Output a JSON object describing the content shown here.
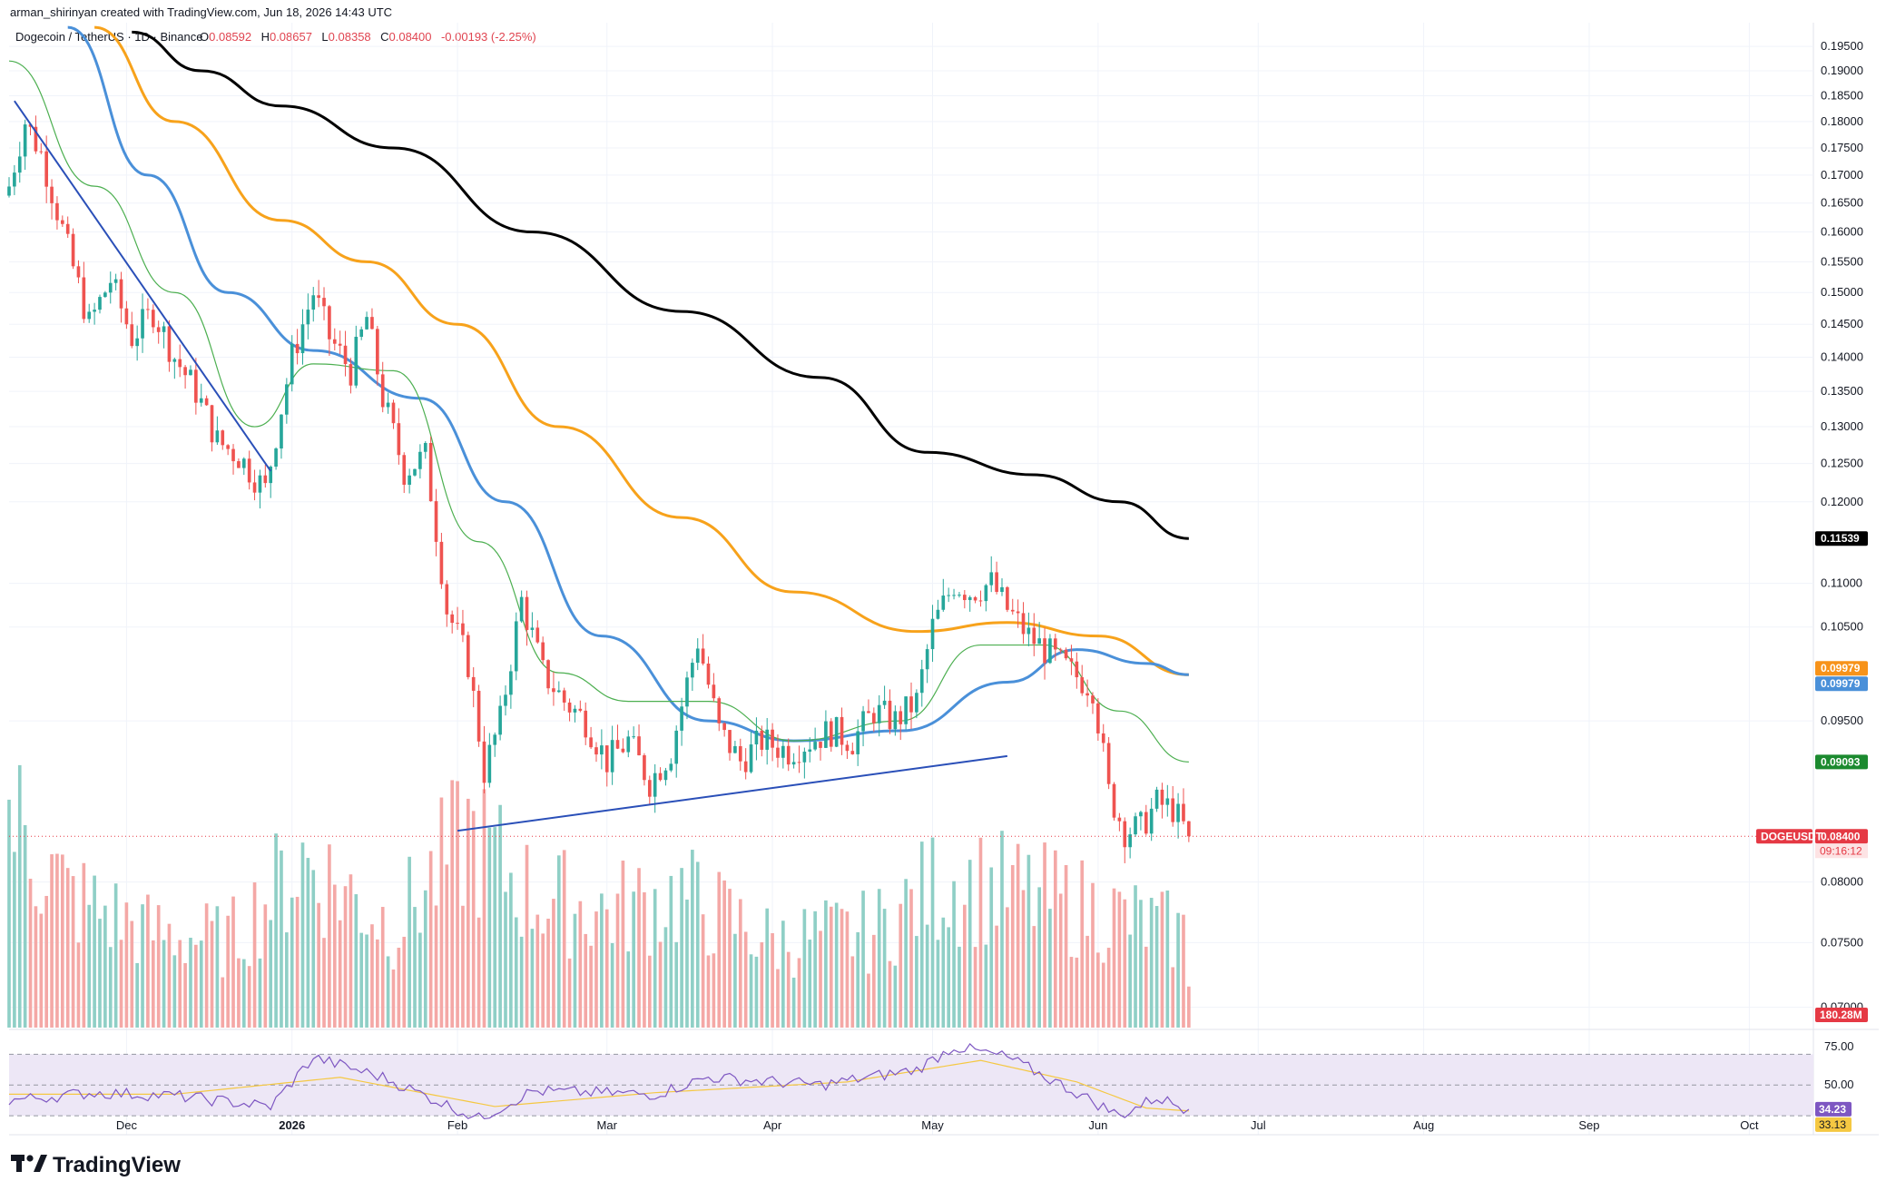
{
  "header": {
    "credit": "arman_shirinyan created with TradingView.com, Jun 18, 2026 14:43 UTC",
    "symbol_line": "Dogecoin / TetherUS · 1D · Binance",
    "ohlc": {
      "o_label": "O",
      "o": "0.08592",
      "h_label": "H",
      "h": "0.08657",
      "l_label": "L",
      "l": "0.08358",
      "c_label": "C",
      "c": "0.08400",
      "change": "-0.00193 (-2.25%)"
    }
  },
  "colors": {
    "up": "#26a69a",
    "down": "#ef5350",
    "vol_up": "#8fcfc6",
    "vol_down": "#f4a8a6",
    "ma_black": "#000000",
    "ma_orange": "#f7a21b",
    "ma_blue": "#4a90d9",
    "ma_green": "#4caf50",
    "trendline": "#2a4fb8",
    "rsi_line": "#7e57c2",
    "rsi_ma": "#f5c842",
    "rsi_band": "#ede7f6",
    "tag_black": "#000000",
    "tag_orange": "#f7931a",
    "tag_blue": "#4a90d9",
    "tag_green": "#1b8a2f",
    "tag_red": "#e53944"
  },
  "chart_data": {
    "type": "candlestick",
    "x_axis": {
      "labels": [
        "Dec",
        "2026",
        "Feb",
        "Mar",
        "Apr",
        "May",
        "Jun",
        "Jul",
        "Aug",
        "Sep",
        "Oct"
      ],
      "range": [
        "2025-11-09",
        "2026-10-13"
      ]
    },
    "y_axis": {
      "scale": "log",
      "ticks": [
        "0.19500",
        "0.19000",
        "0.18500",
        "0.18000",
        "0.17500",
        "0.17000",
        "0.16500",
        "0.16000",
        "0.15500",
        "0.15000",
        "0.14500",
        "0.14000",
        "0.13500",
        "0.13000",
        "0.12500",
        "0.12000",
        "0.11000",
        "0.10500",
        "0.09500",
        "0.08000",
        "0.07500",
        "0.07000"
      ],
      "range": [
        0.0685,
        0.2
      ]
    },
    "ohlc_anchors": [
      {
        "date": "2025-11-09",
        "close": 0.168
      },
      {
        "date": "2025-11-12",
        "close": 0.18
      },
      {
        "date": "2025-11-15",
        "close": 0.174
      },
      {
        "date": "2025-11-20",
        "close": 0.157
      },
      {
        "date": "2025-11-24",
        "close": 0.145
      },
      {
        "date": "2025-11-28",
        "close": 0.152
      },
      {
        "date": "2025-12-02",
        "close": 0.143
      },
      {
        "date": "2025-12-06",
        "close": 0.147
      },
      {
        "date": "2025-12-10",
        "close": 0.14
      },
      {
        "date": "2025-12-14",
        "close": 0.135
      },
      {
        "date": "2025-12-18",
        "close": 0.128
      },
      {
        "date": "2025-12-22",
        "close": 0.126
      },
      {
        "date": "2025-12-27",
        "close": 0.1215
      },
      {
        "date": "2026-01-01",
        "close": 0.14
      },
      {
        "date": "2026-01-05",
        "close": 0.15
      },
      {
        "date": "2026-01-08",
        "close": 0.143
      },
      {
        "date": "2026-01-12",
        "close": 0.138
      },
      {
        "date": "2026-01-15",
        "close": 0.146
      },
      {
        "date": "2026-01-18",
        "close": 0.134
      },
      {
        "date": "2026-01-22",
        "close": 0.124
      },
      {
        "date": "2026-01-26",
        "close": 0.126
      },
      {
        "date": "2026-01-30",
        "close": 0.107
      },
      {
        "date": "2026-02-03",
        "close": 0.101
      },
      {
        "date": "2026-02-06",
        "close": 0.09
      },
      {
        "date": "2026-02-09",
        "close": 0.095
      },
      {
        "date": "2026-02-13",
        "close": 0.108
      },
      {
        "date": "2026-02-17",
        "close": 0.1
      },
      {
        "date": "2026-02-21",
        "close": 0.097
      },
      {
        "date": "2026-02-25",
        "close": 0.095
      },
      {
        "date": "2026-03-01",
        "close": 0.091
      },
      {
        "date": "2026-03-05",
        "close": 0.093
      },
      {
        "date": "2026-03-09",
        "close": 0.089
      },
      {
        "date": "2026-03-13",
        "close": 0.092
      },
      {
        "date": "2026-03-18",
        "close": 0.1035
      },
      {
        "date": "2026-03-22",
        "close": 0.094
      },
      {
        "date": "2026-03-26",
        "close": 0.091
      },
      {
        "date": "2026-03-30",
        "close": 0.093
      },
      {
        "date": "2026-04-04",
        "close": 0.092
      },
      {
        "date": "2026-04-08",
        "close": 0.093
      },
      {
        "date": "2026-04-12",
        "close": 0.094
      },
      {
        "date": "2026-04-16",
        "close": 0.093
      },
      {
        "date": "2026-04-20",
        "close": 0.096
      },
      {
        "date": "2026-04-24",
        "close": 0.095
      },
      {
        "date": "2026-04-28",
        "close": 0.097
      },
      {
        "date": "2026-05-01",
        "close": 0.105
      },
      {
        "date": "2026-05-05",
        "close": 0.11
      },
      {
        "date": "2026-05-08",
        "close": 0.109
      },
      {
        "date": "2026-05-12",
        "close": 0.11
      },
      {
        "date": "2026-05-15",
        "close": 0.107
      },
      {
        "date": "2026-05-19",
        "close": 0.104
      },
      {
        "date": "2026-05-23",
        "close": 0.102
      },
      {
        "date": "2026-05-27",
        "close": 0.1
      },
      {
        "date": "2026-05-31",
        "close": 0.0985
      },
      {
        "date": "2026-06-03",
        "close": 0.088
      },
      {
        "date": "2026-06-06",
        "close": 0.0845
      },
      {
        "date": "2026-06-09",
        "close": 0.0848
      },
      {
        "date": "2026-06-12",
        "close": 0.087
      },
      {
        "date": "2026-06-15",
        "close": 0.0865
      },
      {
        "date": "2026-06-18",
        "close": 0.084
      }
    ],
    "moving_averages": [
      {
        "color_key": "ma_black",
        "value": "0.11539",
        "points": [
          [
            "2025-12-02",
            0.198
          ],
          [
            "2025-12-15",
            0.19
          ],
          [
            "2025-12-30",
            0.183
          ],
          [
            "2026-01-20",
            0.175
          ],
          [
            "2026-02-15",
            0.16
          ],
          [
            "2026-03-15",
            0.147
          ],
          [
            "2026-04-10",
            0.137
          ],
          [
            "2026-04-30",
            0.1265
          ],
          [
            "2026-05-20",
            0.1235
          ],
          [
            "2026-06-05",
            0.12
          ],
          [
            "2026-06-18",
            0.11539
          ]
        ]
      },
      {
        "color_key": "ma_orange",
        "value": "0.09979",
        "points": [
          [
            "2025-11-25",
            0.199
          ],
          [
            "2025-12-10",
            0.18
          ],
          [
            "2025-12-30",
            0.162
          ],
          [
            "2026-01-15",
            0.155
          ],
          [
            "2026-02-01",
            0.145
          ],
          [
            "2026-02-20",
            0.13
          ],
          [
            "2026-03-15",
            0.118
          ],
          [
            "2026-04-05",
            0.109
          ],
          [
            "2026-04-28",
            0.1045
          ],
          [
            "2026-05-15",
            0.1055
          ],
          [
            "2026-06-01",
            0.104
          ],
          [
            "2026-06-18",
            0.09979
          ]
        ]
      },
      {
        "color_key": "ma_blue",
        "value": "0.09979",
        "points": [
          [
            "2025-11-20",
            0.199
          ],
          [
            "2025-12-05",
            0.17
          ],
          [
            "2025-12-20",
            0.15
          ],
          [
            "2026-01-05",
            0.141
          ],
          [
            "2026-01-25",
            0.134
          ],
          [
            "2026-02-10",
            0.12
          ],
          [
            "2026-02-28",
            0.104
          ],
          [
            "2026-03-20",
            0.095
          ],
          [
            "2026-04-05",
            0.093
          ],
          [
            "2026-04-25",
            0.094
          ],
          [
            "2026-05-15",
            0.099
          ],
          [
            "2026-05-28",
            0.1025
          ],
          [
            "2026-06-10",
            0.101
          ],
          [
            "2026-06-18",
            0.09979
          ]
        ]
      },
      {
        "color_key": "ma_green",
        "value": "0.09093",
        "points": [
          [
            "2025-11-09",
            0.192
          ],
          [
            "2025-11-25",
            0.168
          ],
          [
            "2025-12-10",
            0.15
          ],
          [
            "2025-12-25",
            0.13
          ],
          [
            "2026-01-05",
            0.139
          ],
          [
            "2026-01-20",
            0.138
          ],
          [
            "2026-02-05",
            0.115
          ],
          [
            "2026-02-20",
            0.1
          ],
          [
            "2026-03-05",
            0.097
          ],
          [
            "2026-03-20",
            0.097
          ],
          [
            "2026-04-05",
            0.093
          ],
          [
            "2026-04-25",
            0.095
          ],
          [
            "2026-05-10",
            0.103
          ],
          [
            "2026-05-22",
            0.103
          ],
          [
            "2026-06-05",
            0.096
          ],
          [
            "2026-06-18",
            0.09093
          ]
        ]
      }
    ],
    "trendlines": [
      {
        "from": [
          "2025-11-10",
          0.184
        ],
        "to": [
          "2025-12-28",
          0.124
        ]
      },
      {
        "from": [
          "2026-02-01",
          0.0845
        ],
        "to": [
          "2026-05-15",
          0.0915
        ]
      }
    ],
    "volume_label": "180.28M",
    "volume_scale_max_m": 520,
    "volume_anchors": [
      {
        "date": "2025-11-09",
        "v": 420
      },
      {
        "date": "2025-11-20",
        "v": 260
      },
      {
        "date": "2025-12-05",
        "v": 190
      },
      {
        "date": "2025-12-20",
        "v": 170
      },
      {
        "date": "2026-01-03",
        "v": 330
      },
      {
        "date": "2026-01-20",
        "v": 200
      },
      {
        "date": "2026-02-03",
        "v": 380
      },
      {
        "date": "2026-02-15",
        "v": 260
      },
      {
        "date": "2026-03-01",
        "v": 230
      },
      {
        "date": "2026-03-15",
        "v": 260
      },
      {
        "date": "2026-04-01",
        "v": 170
      },
      {
        "date": "2026-04-20",
        "v": 190
      },
      {
        "date": "2026-05-03",
        "v": 290
      },
      {
        "date": "2026-05-15",
        "v": 270
      },
      {
        "date": "2026-06-01",
        "v": 230
      },
      {
        "date": "2026-06-18",
        "v": 180
      }
    ],
    "rsi": {
      "ticks": [
        "75.00",
        "50.00"
      ],
      "value": "34.23",
      "ma_value": "33.13",
      "levels": [
        30,
        50,
        70
      ],
      "anchors": [
        {
          "date": "2025-11-09",
          "v": 40
        },
        {
          "date": "2025-11-25",
          "v": 45
        },
        {
          "date": "2025-12-10",
          "v": 43
        },
        {
          "date": "2025-12-28",
          "v": 36
        },
        {
          "date": "2026-01-05",
          "v": 68
        },
        {
          "date": "2026-01-18",
          "v": 55
        },
        {
          "date": "2026-02-05",
          "v": 28
        },
        {
          "date": "2026-02-15",
          "v": 46
        },
        {
          "date": "2026-03-10",
          "v": 44
        },
        {
          "date": "2026-03-20",
          "v": 55
        },
        {
          "date": "2026-04-10",
          "v": 50
        },
        {
          "date": "2026-04-28",
          "v": 60
        },
        {
          "date": "2026-05-05",
          "v": 75
        },
        {
          "date": "2026-05-15",
          "v": 68
        },
        {
          "date": "2026-05-28",
          "v": 45
        },
        {
          "date": "2026-06-05",
          "v": 30
        },
        {
          "date": "2026-06-12",
          "v": 42
        },
        {
          "date": "2026-06-18",
          "v": 34.23
        }
      ],
      "ma_anchors": [
        {
          "date": "2025-11-09",
          "v": 44
        },
        {
          "date": "2025-12-10",
          "v": 44
        },
        {
          "date": "2026-01-10",
          "v": 55
        },
        {
          "date": "2026-02-08",
          "v": 36
        },
        {
          "date": "2026-03-10",
          "v": 45
        },
        {
          "date": "2026-04-15",
          "v": 52
        },
        {
          "date": "2026-05-10",
          "v": 66
        },
        {
          "date": "2026-05-28",
          "v": 52
        },
        {
          "date": "2026-06-10",
          "v": 35
        },
        {
          "date": "2026-06-18",
          "v": 33.13
        }
      ]
    },
    "price_tags": [
      {
        "key": "ma_black",
        "text": "0.11539",
        "price": 0.11539,
        "color_key": "tag_black"
      },
      {
        "key": "ma_orange",
        "text": "0.09979",
        "price": 0.0998,
        "color_key": "tag_orange",
        "dy": -7
      },
      {
        "key": "ma_blue",
        "text": "0.09979",
        "price": 0.0998,
        "color_key": "tag_blue",
        "dy": 10
      },
      {
        "key": "ma_green",
        "text": "0.09093",
        "price": 0.09093,
        "color_key": "tag_green"
      },
      {
        "key": "last",
        "text": "0.08400",
        "price": 0.084,
        "color_key": "tag_red"
      }
    ],
    "countdown": "09:16:12",
    "symbol_tag": "DOGEUSDT"
  },
  "footer": {
    "brand": "TradingView"
  }
}
